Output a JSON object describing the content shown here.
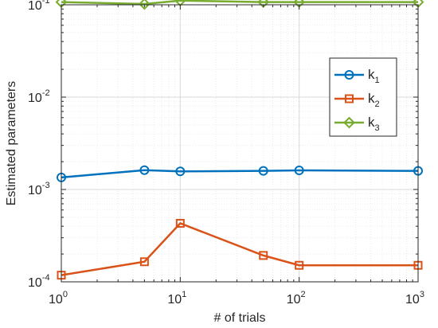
{
  "chart_data": {
    "type": "line",
    "xscale": "log",
    "yscale": "log",
    "xlim": [
      1,
      1000
    ],
    "ylim": [
      0.0001,
      0.1
    ],
    "grid": true,
    "minor_grid": true,
    "legend_placement": "right, upper-middle",
    "xlabel": "# of trials",
    "ylabel": "Estimated parameters",
    "x": [
      1,
      5,
      10,
      50,
      100,
      1000
    ],
    "x_ticks": [
      {
        "base": "10",
        "exp": "0",
        "value": 1
      },
      {
        "base": "10",
        "exp": "1",
        "value": 10
      },
      {
        "base": "10",
        "exp": "2",
        "value": 100
      },
      {
        "base": "10",
        "exp": "3",
        "value": 1000
      }
    ],
    "y_ticks": [
      {
        "base": "10",
        "exp": "-4",
        "value": 0.0001
      },
      {
        "base": "10",
        "exp": "-3",
        "value": 0.001
      },
      {
        "base": "10",
        "exp": "-2",
        "value": 0.01
      },
      {
        "base": "10",
        "exp": "-1",
        "value": 0.1
      }
    ],
    "series": [
      {
        "name": "k",
        "sub": "1",
        "color": "#0072BD",
        "marker": "circle",
        "values": [
          0.00135,
          0.00162,
          0.00157,
          0.00159,
          0.00161,
          0.00159
        ]
      },
      {
        "name": "k",
        "sub": "2",
        "color": "#D95319",
        "marker": "square",
        "values": [
          0.000118,
          0.000165,
          0.00043,
          0.000193,
          0.000151,
          0.000151
        ]
      },
      {
        "name": "k",
        "sub": "3",
        "color": "#77AC30",
        "marker": "diamond",
        "values": [
          0.107,
          0.102,
          0.111,
          0.107,
          0.107,
          0.107
        ]
      }
    ]
  }
}
